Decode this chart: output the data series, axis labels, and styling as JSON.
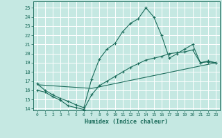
{
  "xlabel": "Humidex (Indice chaleur)",
  "bg_color": "#c5e8e2",
  "grid_color": "#ffffff",
  "line_color": "#1a6b5a",
  "xlim": [
    -0.5,
    23.5
  ],
  "ylim": [
    13.8,
    25.7
  ],
  "yticks": [
    14,
    15,
    16,
    17,
    18,
    19,
    20,
    21,
    22,
    23,
    24,
    25
  ],
  "xticks": [
    0,
    1,
    2,
    3,
    4,
    5,
    6,
    7,
    8,
    9,
    10,
    11,
    12,
    13,
    14,
    15,
    16,
    17,
    18,
    19,
    20,
    21,
    22,
    23
  ],
  "line1_x": [
    0,
    1,
    2,
    3,
    4,
    5,
    6,
    7,
    8,
    9,
    10,
    11,
    12,
    13,
    14,
    15,
    16,
    17,
    18,
    19,
    20,
    21,
    22,
    23
  ],
  "line1_y": [
    16.7,
    16.0,
    15.5,
    15.1,
    14.8,
    14.4,
    14.1,
    17.2,
    19.4,
    20.5,
    21.1,
    22.4,
    23.3,
    23.8,
    25.0,
    24.0,
    22.0,
    19.5,
    20.0,
    20.5,
    21.0,
    19.0,
    19.2,
    19.0
  ],
  "line2_x": [
    0,
    7,
    23
  ],
  "line2_y": [
    16.6,
    16.2,
    19.0
  ],
  "line3_x": [
    0,
    1,
    2,
    3,
    4,
    5,
    6,
    7,
    8,
    9,
    10,
    11,
    12,
    13,
    14,
    15,
    16,
    17,
    18,
    19,
    20,
    21,
    22,
    23
  ],
  "line3_y": [
    16.0,
    15.8,
    15.3,
    14.9,
    14.3,
    14.1,
    13.9,
    15.5,
    16.5,
    17.0,
    17.5,
    18.0,
    18.5,
    18.9,
    19.3,
    19.5,
    19.7,
    20.0,
    20.1,
    20.2,
    20.4,
    19.0,
    19.1,
    19.0
  ]
}
